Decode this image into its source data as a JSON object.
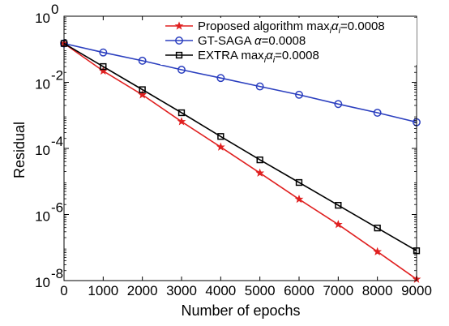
{
  "chart_data": {
    "type": "line",
    "xlabel": "Number of epochs",
    "ylabel": "Residual",
    "xlim": [
      0,
      9000
    ],
    "ylim": [
      1e-08,
      1
    ],
    "yscale": "log",
    "grid": false,
    "legend_position": "top-right",
    "x_ticks": [
      "0",
      "1000",
      "2000",
      "3000",
      "4000",
      "5000",
      "6000",
      "7000",
      "8000",
      "9000"
    ],
    "y_ticks": [
      {
        "base": "10",
        "exp": "0"
      },
      {
        "base": "10",
        "exp": "-2"
      },
      {
        "base": "10",
        "exp": "-4"
      },
      {
        "base": "10",
        "exp": "-6"
      },
      {
        "base": "10",
        "exp": "-8"
      }
    ],
    "series": [
      {
        "name": "Proposed algorithm max",
        "legend_parts": [
          "Proposed algorithm max",
          "i",
          "α",
          "i",
          "=0.0008"
        ],
        "color": "#e02020",
        "marker": "star",
        "x": [
          0,
          1000,
          2000,
          3000,
          4000,
          5000,
          6000,
          7000,
          8000,
          9000
        ],
        "values": [
          0.15,
          0.022,
          0.0042,
          0.00065,
          0.00011,
          1.8e-05,
          2.9e-06,
          5e-07,
          7.5e-08,
          1.1e-08
        ]
      },
      {
        "name": "GT-SAGA",
        "legend_parts": [
          "GT-SAGA ",
          "α",
          "=0.0008"
        ],
        "color": "#2b3fbf",
        "marker": "circle",
        "x": [
          0,
          1000,
          2000,
          3000,
          4000,
          5000,
          6000,
          7000,
          8000,
          9000
        ],
        "values": [
          0.15,
          0.08,
          0.045,
          0.024,
          0.0135,
          0.0075,
          0.0042,
          0.0022,
          0.0012,
          0.00062
        ]
      },
      {
        "name": "EXTRA max",
        "legend_parts": [
          "EXTRA max",
          "i",
          "α",
          "i",
          "=0.0008"
        ],
        "color": "#000000",
        "marker": "square",
        "x": [
          0,
          1000,
          2000,
          3000,
          4000,
          5000,
          6000,
          7000,
          8000,
          9000
        ],
        "values": [
          0.15,
          0.03,
          0.006,
          0.0012,
          0.00023,
          4.5e-05,
          9.3e-06,
          1.9e-06,
          3.9e-07,
          8e-08
        ]
      }
    ]
  }
}
